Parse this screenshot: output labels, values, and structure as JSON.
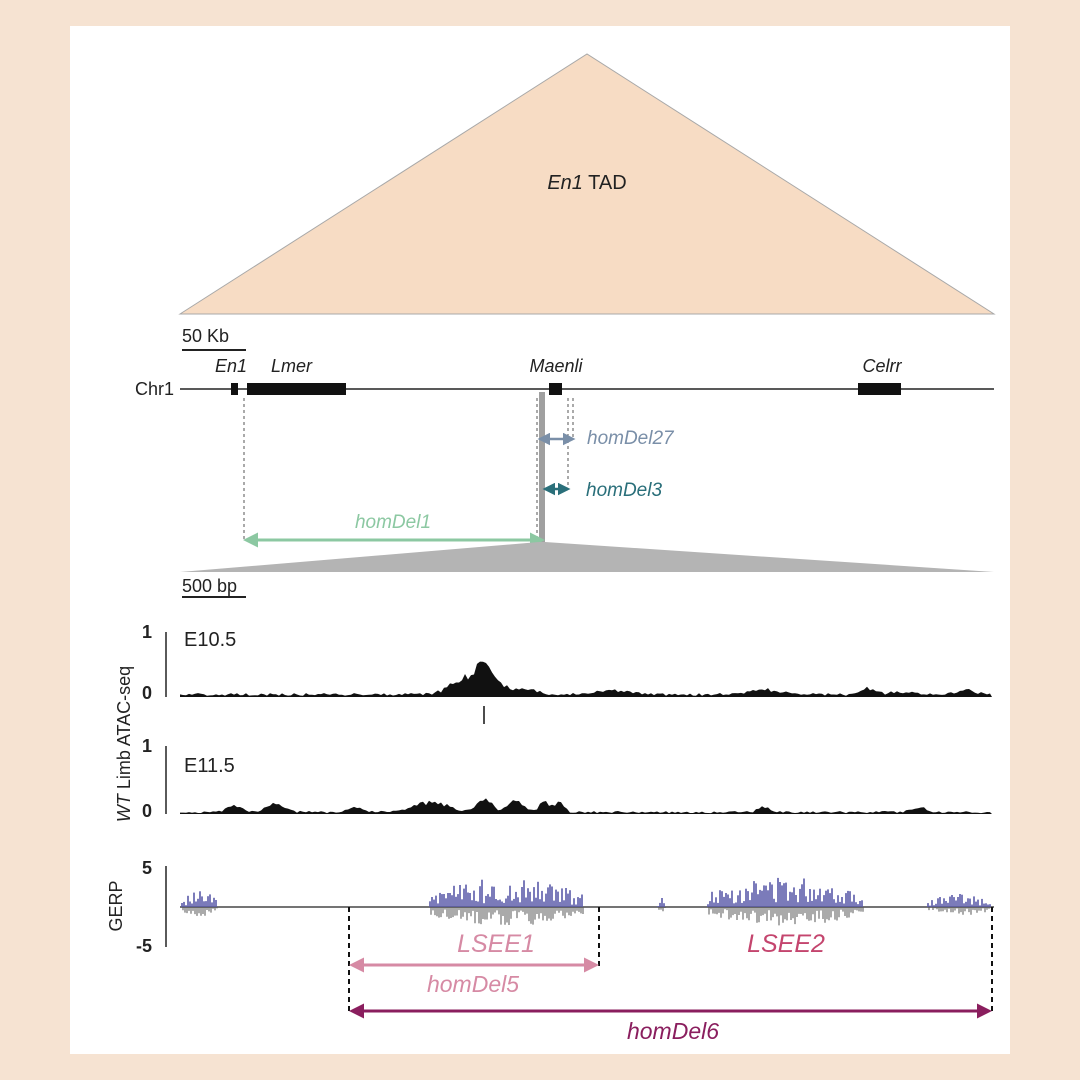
{
  "tad": {
    "gene": "En1",
    "suffix": " TAD",
    "color": "#f7dcc4"
  },
  "scale_top": "50 Kb",
  "chromosome": "Chr1",
  "genes": [
    "En1",
    "Lmer",
    "Maenli",
    "Celrr"
  ],
  "deletions_top": [
    {
      "name": "homDel27",
      "color": "#7a8fa8"
    },
    {
      "name": "homDel3",
      "color": "#2a6f7a"
    },
    {
      "name": "homDel1",
      "color": "#8cc8a2"
    }
  ],
  "scale_bottom": "500 bp",
  "atac": {
    "axis_label_genotype": "WT",
    "axis_label_rest": " Limb ATAC-seq",
    "tracks": [
      {
        "stage": "E10.5",
        "ymax": "1",
        "ymin": "0"
      },
      {
        "stage": "E11.5",
        "ymax": "1",
        "ymin": "0"
      }
    ]
  },
  "gerp": {
    "label": "GERP",
    "ymax": "5",
    "ymin": "-5",
    "color": "#5a5aa8"
  },
  "elements": [
    {
      "name": "LSEE1",
      "color": "#d68aa4"
    },
    {
      "name": "LSEE2",
      "color": "#c4456e"
    }
  ],
  "deletions_bottom": [
    {
      "name": "homDel5",
      "color": "#d68aa4"
    },
    {
      "name": "homDel6",
      "color": "#8a1e5e"
    }
  ]
}
